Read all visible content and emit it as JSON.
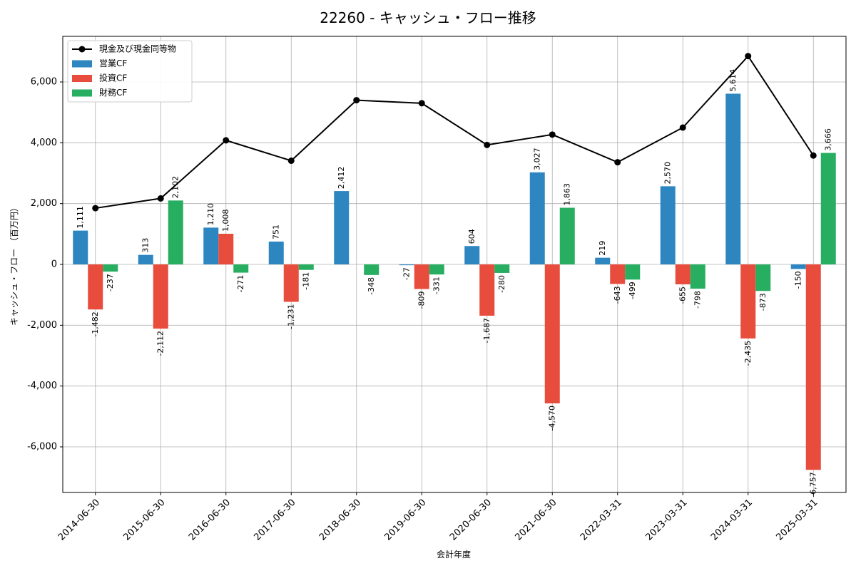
{
  "chart_data": {
    "type": "bar",
    "title": "22260 - キャッシュ・フロー推移",
    "xlabel": "会計年度",
    "ylabel": "キャッシュ・フロー （百万円）",
    "categories": [
      "2014-06-30",
      "2015-06-30",
      "2016-06-30",
      "2017-06-30",
      "2018-06-30",
      "2019-06-30",
      "2020-06-30",
      "2021-06-30",
      "2022-03-31",
      "2023-03-31",
      "2024-03-31",
      "2025-03-31"
    ],
    "ylim": [
      -7500,
      7500
    ],
    "yticks": [
      -6000,
      -4000,
      -2000,
      0,
      2000,
      4000,
      6000
    ],
    "ytick_labels": [
      "-6,000",
      "-4,000",
      "-2,000",
      "0",
      "2,000",
      "4,000",
      "6,000"
    ],
    "grid": true,
    "legend_position": "top-left",
    "series": [
      {
        "name": "営業CF",
        "kind": "bar",
        "color": "#2e86c1",
        "values": [
          1111,
          313,
          1210,
          751,
          2412,
          -27,
          604,
          3027,
          219,
          2570,
          5614,
          -150
        ],
        "labels": [
          "1,111",
          "313",
          "1,210",
          "751",
          "2,412",
          "-27",
          "604",
          "3,027",
          "219",
          "2,570",
          "5,614",
          "-150"
        ]
      },
      {
        "name": "投資CF",
        "kind": "bar",
        "color": "#e74c3c",
        "values": [
          -1482,
          -2112,
          1008,
          -1231,
          0,
          -809,
          -1687,
          -4570,
          -643,
          -655,
          -2435,
          -6757
        ],
        "labels": [
          "-1,482",
          "-2,112",
          "1,008",
          "-1,231",
          "",
          "-809",
          "-1,687",
          "-4,570",
          "-643",
          "-655",
          "-2,435",
          "-6,757"
        ]
      },
      {
        "name": "財務CF",
        "kind": "bar",
        "color": "#27ae60",
        "values": [
          -237,
          2102,
          -271,
          -181,
          -348,
          -331,
          -280,
          1863,
          -499,
          -798,
          -873,
          3666
        ],
        "labels": [
          "-237",
          "2,102",
          "-271",
          "-181",
          "-348",
          "-331",
          "-280",
          "1,863",
          "-499",
          "-798",
          "-873",
          "3,666"
        ]
      },
      {
        "name": "現金及び現金同等物",
        "kind": "line",
        "color": "#000000",
        "values": [
          1850,
          2170,
          4080,
          3410,
          5400,
          5300,
          3930,
          4270,
          3360,
          4500,
          6850,
          3580
        ]
      }
    ]
  }
}
